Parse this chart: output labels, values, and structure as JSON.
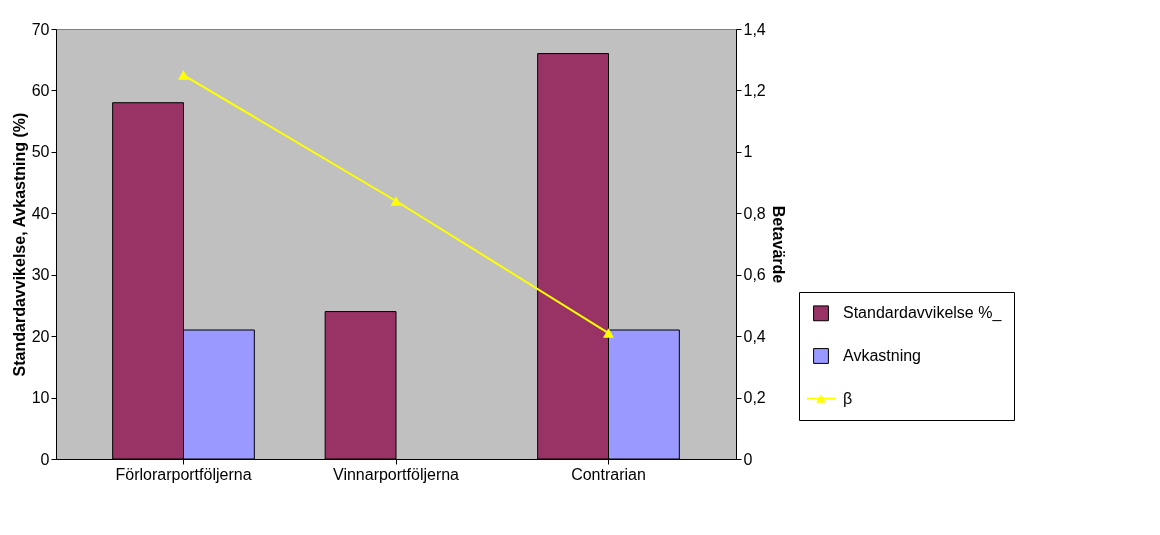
{
  "chart_data": {
    "type": "bar",
    "ylabel": "Standardavvikelse, Avkastning (%)",
    "y2label": "Betavärde",
    "categories": [
      "Förlorarportföljerna",
      "Vinnarportföljerna",
      "Contrarian"
    ],
    "series": [
      {
        "name": "Standardavvikelse %_",
        "color": "#993366",
        "values": [
          58,
          24,
          66
        ]
      },
      {
        "name": "Avkastning",
        "color": "#9999ff",
        "values": [
          21,
          null,
          21
        ]
      },
      {
        "name": "β",
        "type": "line",
        "axis": "y2",
        "color": "#ffff00",
        "values": [
          1.25,
          0.84,
          0.41
        ]
      }
    ],
    "ylim": [
      0,
      70
    ],
    "yticks": [
      0,
      10,
      20,
      30,
      40,
      50,
      60,
      70
    ],
    "y2lim": [
      0,
      1.4
    ],
    "y2ticks": [
      0,
      {
        "value": 0.2,
        "label": "0,2"
      },
      {
        "value": 0.4,
        "label": "0,4"
      },
      {
        "value": 0.6,
        "label": "0,6"
      },
      {
        "value": 0.8,
        "label": "0,8"
      },
      1,
      {
        "value": 1.2,
        "label": "1,2"
      },
      {
        "value": 1.4,
        "label": "1,4"
      }
    ],
    "marker": "triangle",
    "grid": false,
    "legend": "right"
  }
}
